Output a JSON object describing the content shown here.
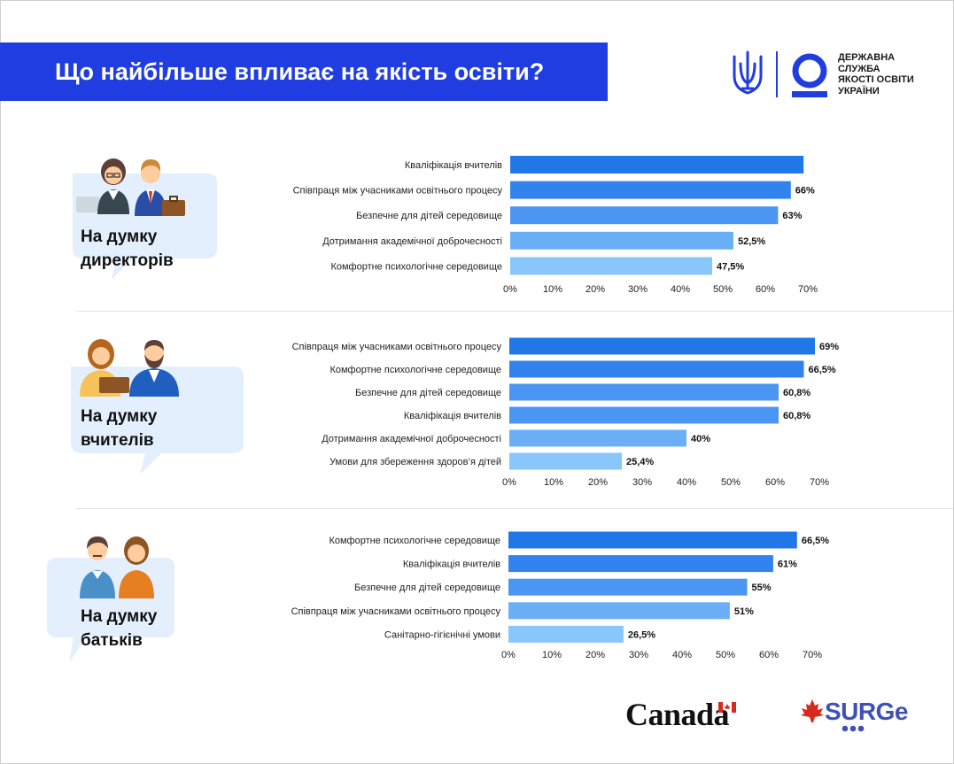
{
  "header": {
    "title": "Що найбільше впливає на якість освіти?",
    "agency_lines": [
      "ДЕРЖАВНА",
      "СЛУЖБА",
      "ЯКОСТІ ОСВІТИ",
      "УКРАЇНИ"
    ]
  },
  "groups": [
    {
      "label_line1": "На думку",
      "label_line2": "директорів"
    },
    {
      "label_line1": "На думку",
      "label_line2": "вчителів"
    },
    {
      "label_line1": "На думку",
      "label_line2": "батьків"
    }
  ],
  "footer": {
    "canada": "Canada",
    "surge": "SURGe"
  },
  "colors": {
    "title_bg": "#1f3de0",
    "bar_shades": [
      "#2277e8",
      "#3383ee",
      "#4b96f2",
      "#6bb0f7",
      "#88c6fb"
    ],
    "bubble": "#e3effc"
  },
  "chart_data": [
    {
      "type": "bar",
      "orientation": "horizontal",
      "categories": [
        "Кваліфікація вчителів",
        "Співпраця між учасниками освітнього процесу",
        "Безпечне для дітей середовище",
        "Дотримання академічної доброчесності",
        "Комфортне психологічне середовище"
      ],
      "values": [
        69,
        66,
        63,
        52.5,
        47.5
      ],
      "labels": [
        "",
        "66%",
        "63%",
        "52,5%",
        "47,5%"
      ],
      "xlim": [
        0,
        70
      ],
      "xticks": [
        "0%",
        "10%",
        "20%",
        "30%",
        "40%",
        "50%",
        "60%",
        "70%"
      ]
    },
    {
      "type": "bar",
      "orientation": "horizontal",
      "categories": [
        "Співпраця між учасниками освітнього процесу",
        "Комфортне психологічне середовище",
        "Безпечне для дітей середовище",
        "Кваліфікація вчителів",
        "Дотримання академічної доброчесності",
        "Умови для збереження здоров’я дітей"
      ],
      "values": [
        69,
        66.5,
        60.8,
        60.8,
        40,
        25.4
      ],
      "labels": [
        "69%",
        "66,5%",
        "60,8%",
        "60,8%",
        "40%",
        "25,4%"
      ],
      "xlim": [
        0,
        70
      ],
      "xticks": [
        "0%",
        "10%",
        "20%",
        "30%",
        "40%",
        "50%",
        "60%",
        "70%"
      ]
    },
    {
      "type": "bar",
      "orientation": "horizontal",
      "categories": [
        "Комфортне психологічне середовище",
        "Кваліфікація вчителів",
        "Безпечне для дітей середовище",
        "Співпраця між учасниками освітнього процесу",
        "Санітарно-гігієнічні умови"
      ],
      "values": [
        66.5,
        61,
        55,
        51,
        26.5
      ],
      "labels": [
        "66,5%",
        "61%",
        "55%",
        "51%",
        "26,5%"
      ],
      "xlim": [
        0,
        70
      ],
      "xticks": [
        "0%",
        "10%",
        "20%",
        "30%",
        "40%",
        "50%",
        "60%",
        "70%"
      ]
    }
  ]
}
